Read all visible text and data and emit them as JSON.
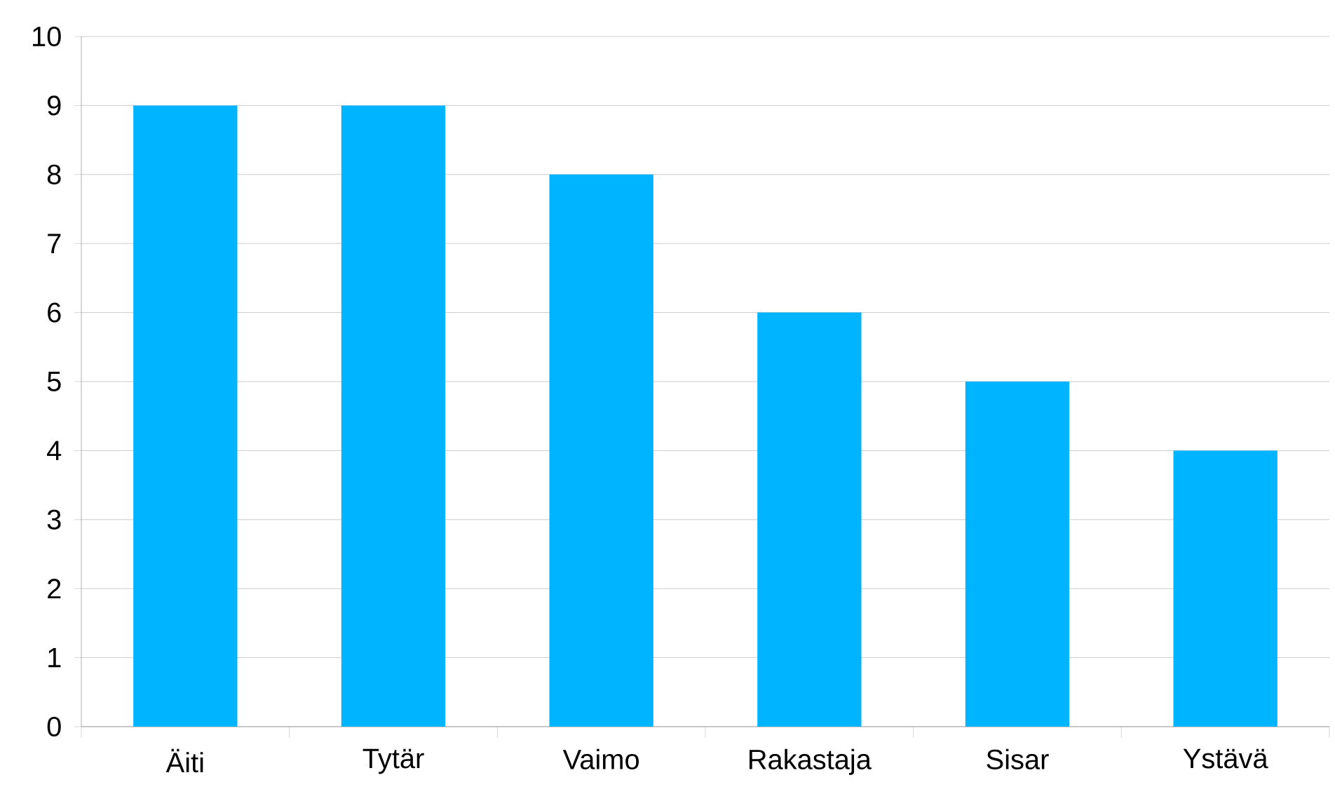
{
  "chart_data": {
    "type": "bar",
    "categories": [
      "Äiti",
      "Tytär",
      "Vaimo",
      "Rakastaja",
      "Sisar",
      "Ystävä"
    ],
    "values": [
      9,
      9,
      8,
      6,
      5,
      4
    ],
    "color": "#00b4ff",
    "ylim": [
      0,
      10
    ],
    "yticks": [
      0,
      1,
      2,
      3,
      4,
      5,
      6,
      7,
      8,
      9,
      10
    ],
    "grid": "y"
  }
}
